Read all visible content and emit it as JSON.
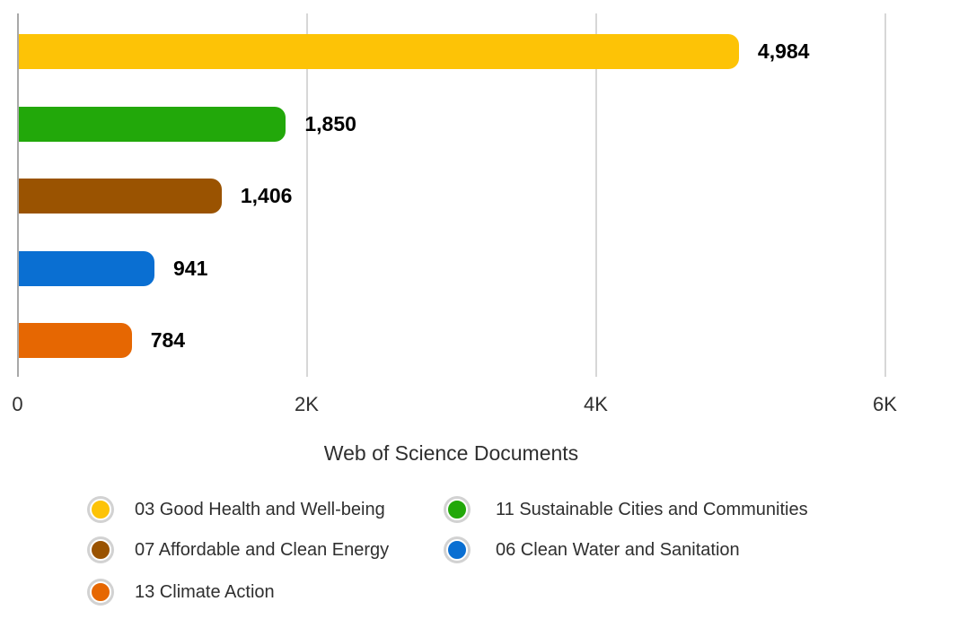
{
  "chart_data": {
    "type": "bar",
    "orientation": "horizontal",
    "title": "",
    "xlabel": "Web of Science Documents",
    "categories": [
      "03 Good Health and Well-being",
      "11 Sustainable Cities and Communities",
      "07 Affordable and Clean Energy",
      "06 Clean Water and Sanitation",
      "13 Climate Action"
    ],
    "values": [
      4984,
      1850,
      1406,
      941,
      784
    ],
    "value_labels": [
      "4,984",
      "1,850",
      "1,406",
      "941",
      "784"
    ],
    "colors": [
      "#FDC306",
      "#22A80A",
      "#9A5301",
      "#0A6FD2",
      "#E66702"
    ],
    "xlim": [
      0,
      6000
    ],
    "ticks": [
      {
        "value": 0,
        "label": "0"
      },
      {
        "value": 2000,
        "label": "2K"
      },
      {
        "value": 4000,
        "label": "4K"
      },
      {
        "value": 6000,
        "label": "6K"
      }
    ],
    "grid": "vertical-gridlines-on",
    "legend_position": "bottom",
    "style": {
      "axis_line_color": "#a8a8a8",
      "grid_color": "#d7d7d7",
      "text_color": "#2f2f2f",
      "value_label_color": "#000000",
      "legend_ring_color": "#d2d2d2",
      "background": "#ffffff"
    }
  }
}
